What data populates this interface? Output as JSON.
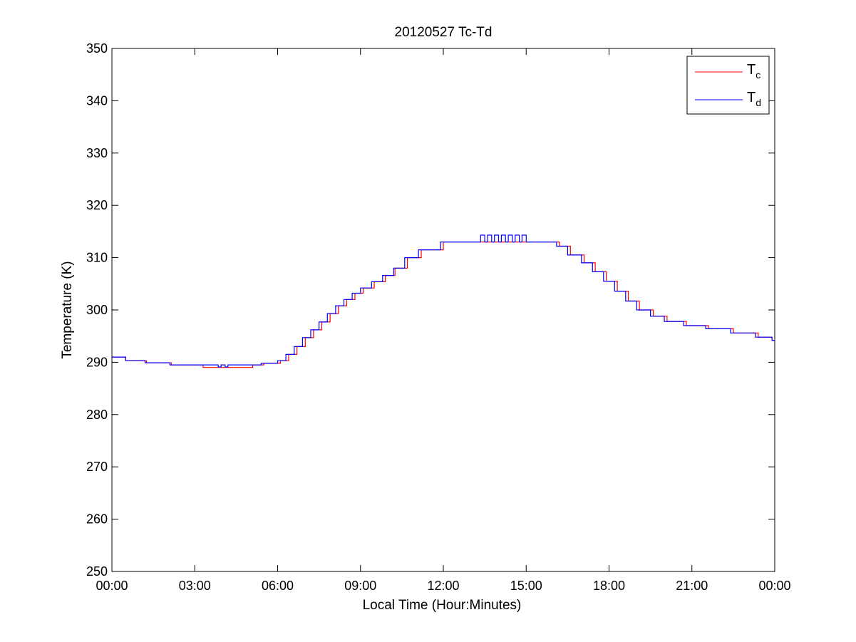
{
  "chart_data": {
    "type": "line",
    "title": "20120527 Tc-Td",
    "xlabel": "Local Time (Hour:Minutes)",
    "ylabel": "Temperature (K)",
    "xlim": [
      0,
      24
    ],
    "ylim": [
      250,
      350
    ],
    "x_ticks": [
      0,
      3,
      6,
      9,
      12,
      15,
      18,
      21,
      24
    ],
    "x_tick_labels": [
      "00:00",
      "03:00",
      "06:00",
      "09:00",
      "12:00",
      "15:00",
      "18:00",
      "21:00",
      "00:00"
    ],
    "y_ticks": [
      250,
      260,
      270,
      280,
      290,
      300,
      310,
      320,
      330,
      340,
      350
    ],
    "y_tick_labels": [
      "250",
      "260",
      "270",
      "280",
      "290",
      "300",
      "310",
      "320",
      "330",
      "340",
      "350"
    ],
    "grid": false,
    "legend_position": "top-right",
    "legend": [
      {
        "base": "T",
        "sub": "c",
        "color": "#ff0000"
      },
      {
        "base": "T",
        "sub": "d",
        "color": "#0000ff"
      }
    ],
    "series": [
      {
        "key": "Tc",
        "color": "#ff0000",
        "x": [
          0,
          0.5,
          1.25,
          2.15,
          3.3,
          5.1,
          5.5,
          6.1,
          6.4,
          6.7,
          7.0,
          7.3,
          7.6,
          7.9,
          8.2,
          8.5,
          8.8,
          9.1,
          9.5,
          9.9,
          10.25,
          10.7,
          11.2,
          12.0,
          14.0,
          15.0,
          16.2,
          16.6,
          17.1,
          17.5,
          17.9,
          18.3,
          18.7,
          19.1,
          19.6,
          20.1,
          20.8,
          21.6,
          22.5,
          23.4,
          23.9
        ],
        "y": [
          291,
          290.3,
          289.9,
          289.5,
          289,
          289.5,
          289.8,
          290.3,
          291.5,
          293,
          294.7,
          296.2,
          297.7,
          299.3,
          300.8,
          302,
          303.2,
          304.2,
          305.4,
          306.6,
          308,
          310,
          311.5,
          313,
          313,
          313,
          312.2,
          310.5,
          309,
          307.3,
          305.5,
          303.6,
          301.7,
          300,
          298.8,
          297.8,
          297,
          296.4,
          295.6,
          294.8,
          294.2
        ]
      },
      {
        "key": "Td",
        "color": "#0000ff",
        "x": [
          0,
          0.5,
          1.2,
          2.1,
          3.3,
          3.85,
          3.95,
          4.1,
          4.2,
          5.4,
          6.0,
          6.3,
          6.6,
          6.9,
          7.2,
          7.5,
          7.8,
          8.1,
          8.4,
          8.7,
          9.0,
          9.4,
          9.8,
          10.2,
          10.6,
          11.1,
          11.9,
          13.3,
          13.35,
          13.5,
          13.6,
          13.75,
          13.85,
          14.0,
          14.1,
          14.25,
          14.35,
          14.5,
          14.6,
          14.75,
          14.85,
          15.0,
          16.1,
          16.5,
          17.0,
          17.4,
          17.8,
          18.2,
          18.6,
          19.0,
          19.5,
          20.0,
          20.7,
          21.5,
          22.4,
          23.3,
          23.9
        ],
        "y": [
          291,
          290.3,
          289.9,
          289.5,
          289.5,
          289.1,
          289.5,
          289.1,
          289.5,
          289.8,
          290.3,
          291.5,
          293,
          294.7,
          296.2,
          297.7,
          299.3,
          300.8,
          302,
          303.2,
          304.2,
          305.4,
          306.6,
          308,
          310,
          311.5,
          313,
          313,
          314.3,
          313,
          314.3,
          313,
          314.3,
          313,
          314.3,
          313,
          314.3,
          313,
          314.3,
          313,
          314.3,
          313,
          312.2,
          310.5,
          309,
          307.3,
          305.5,
          303.6,
          301.7,
          300,
          298.8,
          297.8,
          297,
          296.4,
          295.6,
          294.8,
          294.2
        ]
      }
    ]
  }
}
